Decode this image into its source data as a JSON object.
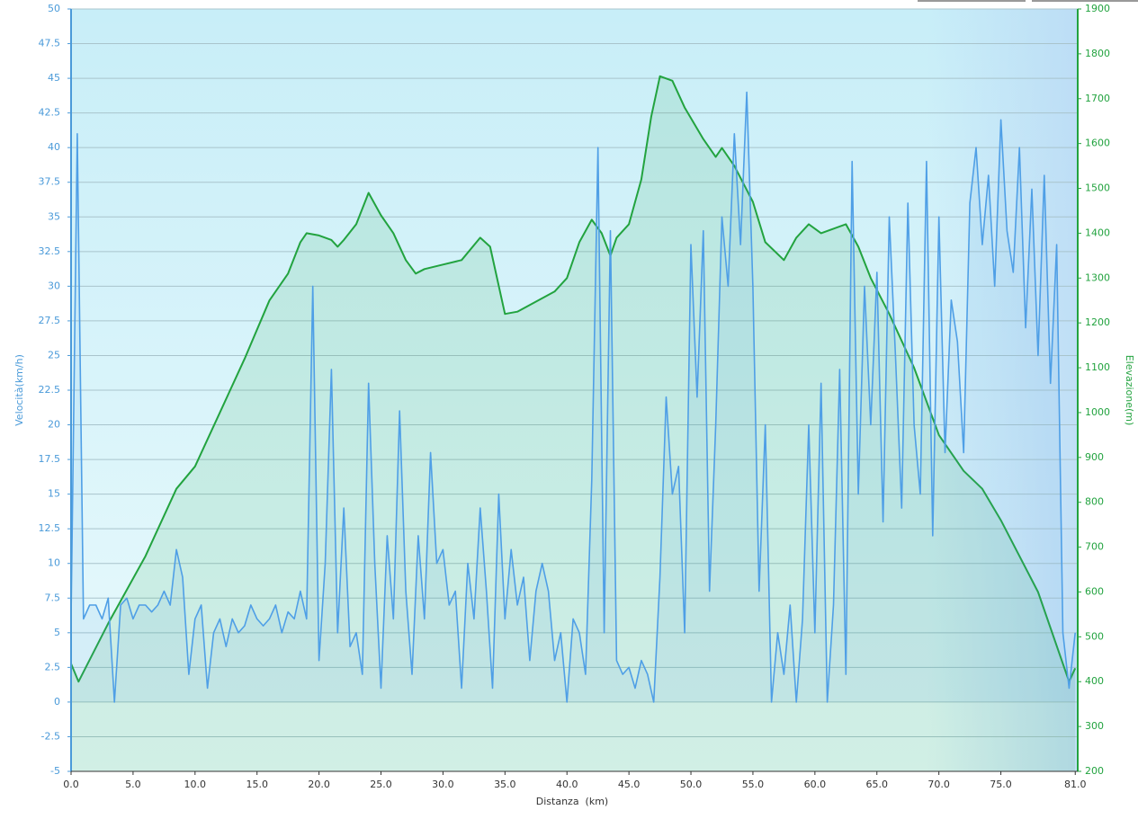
{
  "chart_data": {
    "type": "line",
    "x_label": "Distanza  (km)",
    "y_label": "Velocità(km/h)",
    "y2_label": "Elevazione(m)",
    "xlim": [
      0,
      81.2
    ],
    "xticks": [
      {
        "value": 0,
        "label": "0.0"
      },
      {
        "value": 5,
        "label": "5.0"
      },
      {
        "value": 10,
        "label": "10.0"
      },
      {
        "value": 15,
        "label": "15.0"
      },
      {
        "value": 20,
        "label": "20.0"
      },
      {
        "value": 25,
        "label": "25.0"
      },
      {
        "value": 30,
        "label": "30.0"
      },
      {
        "value": 35,
        "label": "35.0"
      },
      {
        "value": 40,
        "label": "40.0"
      },
      {
        "value": 45,
        "label": "45.0"
      },
      {
        "value": 50,
        "label": "50.0"
      },
      {
        "value": 55,
        "label": "55.0"
      },
      {
        "value": 60,
        "label": "60.0"
      },
      {
        "value": 65,
        "label": "65.0"
      },
      {
        "value": 70,
        "label": "70.0"
      },
      {
        "value": 75,
        "label": "75.0"
      },
      {
        "value": 81,
        "label": "81.0"
      }
    ],
    "ylim": [
      -5,
      50
    ],
    "yticks": [
      -5,
      -2.5,
      0,
      2.5,
      5,
      7.5,
      10,
      12.5,
      15,
      17.5,
      20,
      22.5,
      25,
      27.5,
      30,
      32.5,
      35,
      37.5,
      40,
      42.5,
      45,
      47.5,
      50
    ],
    "y2lim": [
      200,
      1900
    ],
    "y2ticks": [
      200,
      300,
      400,
      500,
      600,
      700,
      800,
      900,
      1000,
      1100,
      1200,
      1300,
      1400,
      1500,
      1600,
      1700,
      1800,
      1900
    ],
    "grid": true,
    "series": [
      {
        "name": "Velocità",
        "color": "#4f9fe6",
        "x": [
          0,
          0.5,
          1,
          1.5,
          2,
          2.5,
          3,
          3.5,
          4,
          4.5,
          5,
          5.5,
          6,
          6.5,
          7,
          7.5,
          8,
          8.5,
          9,
          9.5,
          10,
          10.5,
          11,
          11.5,
          12,
          12.5,
          13,
          13.5,
          14,
          14.5,
          15,
          15.5,
          16,
          16.5,
          17,
          17.5,
          18,
          18.5,
          19,
          19.5,
          20,
          20.5,
          21,
          21.5,
          22,
          22.5,
          23,
          23.5,
          24,
          24.5,
          25,
          25.5,
          26,
          26.5,
          27,
          27.5,
          28,
          28.5,
          29,
          29.5,
          30,
          30.5,
          31,
          31.5,
          32,
          32.5,
          33,
          33.5,
          34,
          34.5,
          35,
          35.5,
          36,
          36.5,
          37,
          37.5,
          38,
          38.5,
          39,
          39.5,
          40,
          40.5,
          41,
          41.5,
          42,
          42.5,
          43,
          43.5,
          44,
          44.5,
          45,
          45.5,
          46,
          46.5,
          47,
          47.5,
          48,
          48.5,
          49,
          49.5,
          50,
          50.5,
          51,
          51.5,
          52,
          52.5,
          53,
          53.5,
          54,
          54.5,
          55,
          55.5,
          56,
          56.5,
          57,
          57.5,
          58,
          58.5,
          59,
          59.5,
          60,
          60.5,
          61,
          61.5,
          62,
          62.5,
          63,
          63.5,
          64,
          64.5,
          65,
          65.5,
          66,
          66.5,
          67,
          67.5,
          68,
          68.5,
          69,
          69.5,
          70,
          70.5,
          71,
          71.5,
          72,
          72.5,
          73,
          73.5,
          74,
          74.5,
          75,
          75.5,
          76,
          76.5,
          77,
          77.5,
          78,
          78.5,
          79,
          79.5,
          80,
          80.5,
          81
        ],
        "values": [
          6,
          41,
          6,
          7,
          7,
          6,
          7.5,
          0,
          7,
          7.5,
          6,
          7,
          7,
          6.5,
          7,
          8,
          7,
          11,
          9,
          2,
          6,
          7,
          1,
          5,
          6,
          4,
          6,
          5,
          5.5,
          7,
          6,
          5.5,
          6,
          7,
          5,
          6.5,
          6,
          8,
          6,
          30,
          3,
          10,
          24,
          5,
          14,
          4,
          5,
          2,
          23,
          10,
          1,
          12,
          6,
          21,
          8,
          2,
          12,
          6,
          18,
          10,
          11,
          7,
          8,
          1,
          10,
          6,
          14,
          8,
          1,
          15,
          6,
          11,
          7,
          9,
          3,
          8,
          10,
          8,
          3,
          5,
          0,
          6,
          5,
          2,
          16,
          40,
          5,
          34,
          3,
          2,
          2.5,
          1,
          3,
          2,
          0,
          9,
          22,
          15,
          17,
          5,
          33,
          22,
          34,
          8,
          20,
          35,
          30,
          41,
          33,
          44,
          30,
          8,
          20,
          0,
          5,
          2,
          7,
          0,
          6,
          20,
          5,
          23,
          0,
          7,
          24,
          2,
          39,
          15,
          30,
          20,
          31,
          13,
          35,
          25,
          14,
          36,
          20,
          15,
          39,
          12,
          35,
          18,
          29,
          26,
          18,
          36,
          40,
          33,
          38,
          30,
          42,
          34,
          31,
          40,
          27,
          37,
          25,
          38,
          23,
          33,
          5,
          1,
          5
        ]
      },
      {
        "name": "Elevazione",
        "color": "#22a33f",
        "axis": "y2",
        "x": [
          0,
          0.6,
          3,
          6,
          8.5,
          10,
          12,
          14,
          16,
          17.5,
          18.5,
          19,
          20,
          21,
          21.5,
          22,
          23,
          24,
          25,
          26,
          27,
          27.8,
          28.5,
          30,
          31.5,
          33,
          33.8,
          35,
          36,
          37,
          39,
          40,
          41,
          42,
          42.8,
          43.5,
          44,
          45,
          46,
          46.8,
          47.5,
          48.5,
          49.5,
          51,
          52,
          52.5,
          53.5,
          55,
          56,
          57.5,
          58.5,
          59.5,
          60.5,
          61.5,
          62.5,
          63.5,
          64.5,
          66,
          68,
          70,
          72,
          73.5,
          75,
          78,
          80.5,
          81
        ],
        "values": [
          440,
          400,
          530,
          680,
          830,
          880,
          1000,
          1120,
          1250,
          1310,
          1380,
          1400,
          1395,
          1385,
          1370,
          1385,
          1420,
          1490,
          1440,
          1400,
          1340,
          1310,
          1320,
          1330,
          1340,
          1390,
          1370,
          1220,
          1225,
          1240,
          1270,
          1300,
          1380,
          1430,
          1400,
          1350,
          1390,
          1420,
          1520,
          1660,
          1750,
          1740,
          1680,
          1610,
          1570,
          1590,
          1550,
          1470,
          1380,
          1340,
          1390,
          1420,
          1400,
          1410,
          1420,
          1370,
          1300,
          1220,
          1100,
          950,
          870,
          830,
          760,
          600,
          400,
          430
        ]
      }
    ]
  }
}
